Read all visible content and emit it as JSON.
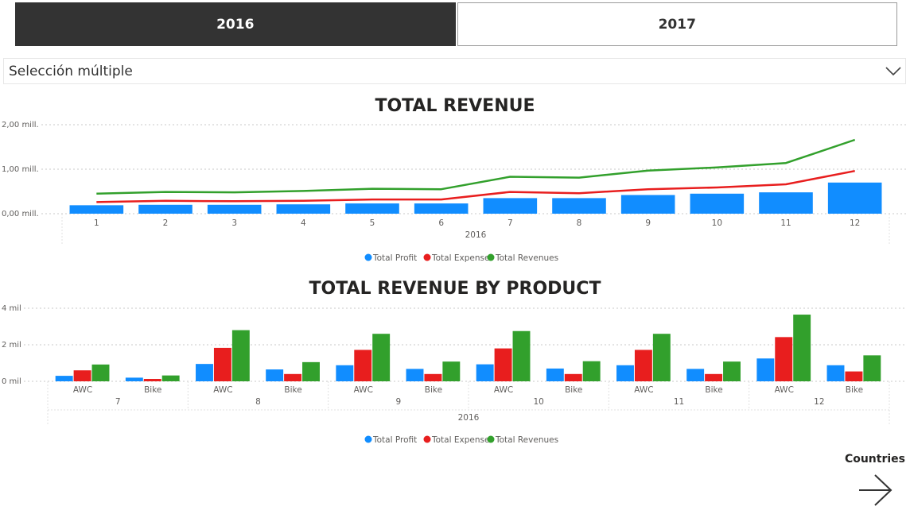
{
  "year_slicer": {
    "selected": "2016",
    "other": "2017"
  },
  "dropdown": {
    "value": "Selección múltiple",
    "icon": "chevron-down-icon"
  },
  "colors": {
    "profit": "#118dff",
    "expenses": "#e81e1e",
    "revenues": "#32a02c",
    "grid": "#c8c8c8",
    "axis_text": "#605e5c"
  },
  "legend": [
    "Total Profit",
    "Total Expenses",
    "Total Revenues"
  ],
  "chart_data": [
    {
      "type": "bar",
      "title": "TOTAL REVENUE",
      "y_ticks": [
        "0,00 mill.",
        "1,00 mill.",
        "2,00 mill."
      ],
      "ylim": [
        0,
        2
      ],
      "y_unit": "mill.",
      "categories": [
        "1",
        "2",
        "3",
        "4",
        "5",
        "6",
        "7",
        "8",
        "9",
        "10",
        "11",
        "12"
      ],
      "group_label": "2016",
      "bar_series": {
        "name": "Total Profit",
        "values": [
          0.19,
          0.2,
          0.2,
          0.21,
          0.23,
          0.23,
          0.35,
          0.35,
          0.42,
          0.45,
          0.48,
          0.7
        ]
      },
      "line_series": [
        {
          "name": "Total Expenses",
          "values": [
            0.26,
            0.29,
            0.28,
            0.29,
            0.32,
            0.32,
            0.49,
            0.46,
            0.55,
            0.59,
            0.66,
            0.96
          ]
        },
        {
          "name": "Total Revenues",
          "values": [
            0.45,
            0.49,
            0.48,
            0.51,
            0.56,
            0.55,
            0.83,
            0.81,
            0.97,
            1.04,
            1.14,
            1.66
          ]
        }
      ],
      "legend_position": "bottom-center",
      "grid": true
    },
    {
      "type": "bar",
      "title": "TOTAL REVENUE BY PRODUCT",
      "y_ticks": [
        "0 mil",
        "2 mil",
        "4 mil"
      ],
      "ylim": [
        0,
        4
      ],
      "y_unit": "mil",
      "x_levels": {
        "products": [
          "AWC",
          "Bike",
          "AWC",
          "Bike",
          "AWC",
          "Bike",
          "AWC",
          "Bike",
          "AWC",
          "Bike",
          "AWC",
          "Bike"
        ],
        "months": [
          "7",
          "8",
          "9",
          "10",
          "11",
          "12"
        ],
        "year": "2016"
      },
      "series": [
        {
          "name": "Total Profit",
          "values": [
            0.3,
            0.2,
            0.95,
            0.65,
            0.88,
            0.68,
            0.93,
            0.7,
            0.88,
            0.68,
            1.25,
            0.88
          ]
        },
        {
          "name": "Total Expenses",
          "values": [
            0.6,
            0.13,
            1.83,
            0.4,
            1.72,
            0.4,
            1.8,
            0.4,
            1.72,
            0.4,
            2.42,
            0.54
          ]
        },
        {
          "name": "Total Revenues",
          "values": [
            0.92,
            0.32,
            2.8,
            1.05,
            2.6,
            1.08,
            2.75,
            1.1,
            2.6,
            1.08,
            3.65,
            1.42
          ]
        }
      ],
      "legend_position": "bottom-center",
      "grid": true
    }
  ],
  "nav": {
    "label": "Countries",
    "icon": "arrow-right-icon"
  }
}
